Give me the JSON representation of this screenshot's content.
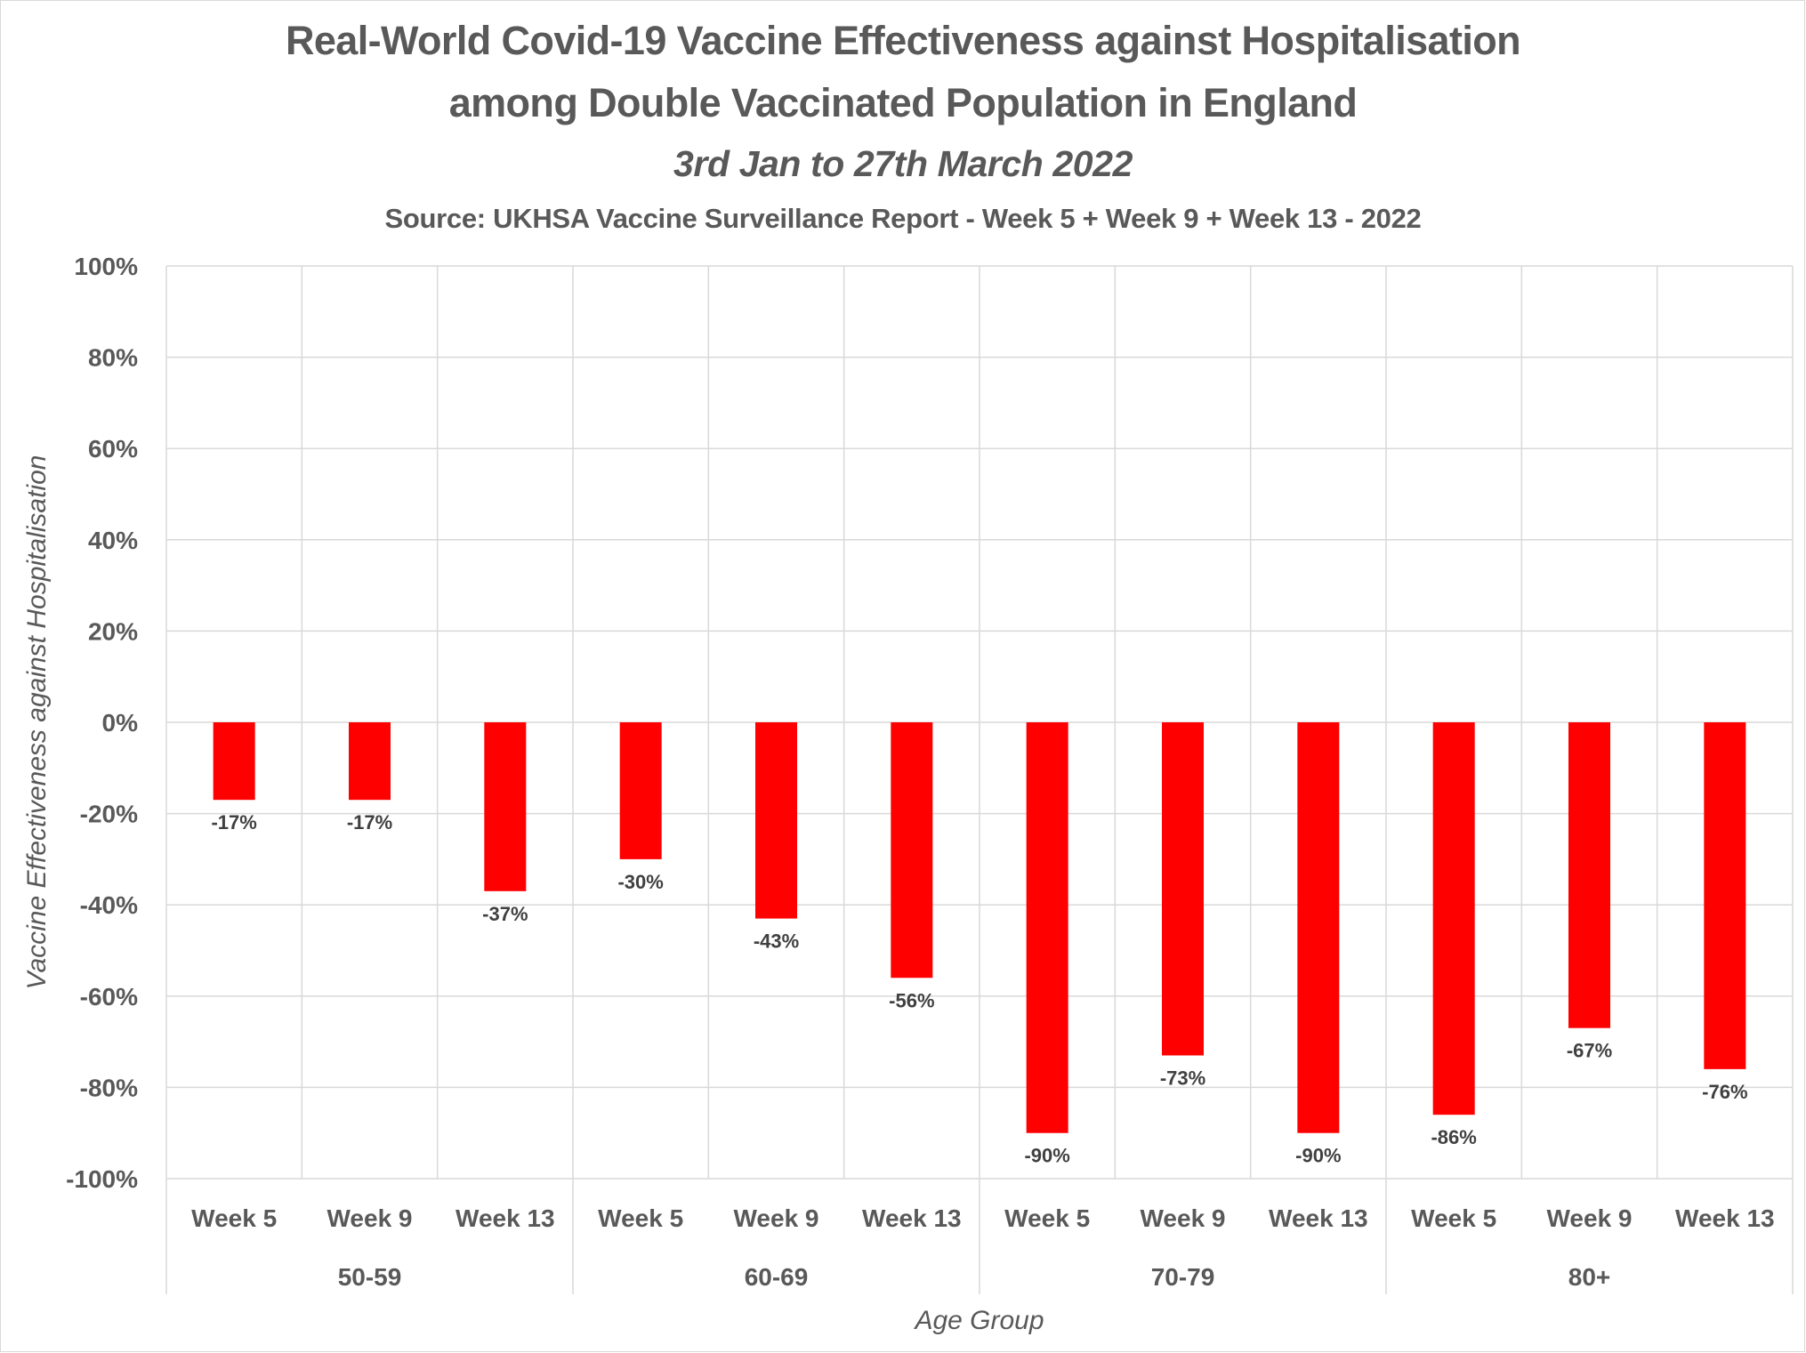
{
  "chart_data": {
    "type": "bar",
    "title": "Real-World Covid-19 Vaccine Effectiveness against Hospitalisation among Double Vaccinated Population in England",
    "title_lines": [
      "Real-World Covid-19 Vaccine Effectiveness against Hospitalisation",
      "among Double Vaccinated Population in England"
    ],
    "subtitle": "3rd Jan to 27th March 2022",
    "source": "Source: UKHSA Vaccine Surveillance Report - Week 5 + Week 9 + Week 13 - 2022",
    "xlabel": "Age Group",
    "ylabel": "Vaccine Effectiveness against Hospitalisation",
    "ylim": [
      -100,
      100
    ],
    "yticks": [
      100,
      80,
      60,
      40,
      20,
      0,
      -20,
      -40,
      -60,
      -80,
      -100
    ],
    "ytick_labels": [
      "100%",
      "80%",
      "60%",
      "40%",
      "20%",
      "0%",
      "-20%",
      "-40%",
      "-60%",
      "-80%",
      "-100%"
    ],
    "value_unit": "%",
    "grid": true,
    "legend": "none",
    "bar_color": "#FF0000",
    "groups": [
      {
        "label": "50-59",
        "categories": [
          "Week 5",
          "Week 9",
          "Week 13"
        ],
        "values": [
          -17,
          -17,
          -37
        ]
      },
      {
        "label": "60-69",
        "categories": [
          "Week 5",
          "Week 9",
          "Week 13"
        ],
        "values": [
          -30,
          -43,
          -56
        ]
      },
      {
        "label": "70-79",
        "categories": [
          "Week 5",
          "Week 9",
          "Week 13"
        ],
        "values": [
          -90,
          -73,
          -90
        ]
      },
      {
        "label": "80+",
        "categories": [
          "Week 5",
          "Week 9",
          "Week 13"
        ],
        "values": [
          -86,
          -67,
          -76
        ]
      }
    ],
    "categories": [
      "Week 5",
      "Week 9",
      "Week 13",
      "Week 5",
      "Week 9",
      "Week 13",
      "Week 5",
      "Week 9",
      "Week 13",
      "Week 5",
      "Week 9",
      "Week 13"
    ],
    "values": [
      -17,
      -17,
      -37,
      -30,
      -43,
      -56,
      -90,
      -73,
      -90,
      -86,
      -67,
      -76
    ],
    "value_labels": [
      "-17%",
      "-17%",
      "-37%",
      "-30%",
      "-43%",
      "-56%",
      "-90%",
      "-73%",
      "-90%",
      "-86%",
      "-67%",
      "-76%"
    ]
  }
}
